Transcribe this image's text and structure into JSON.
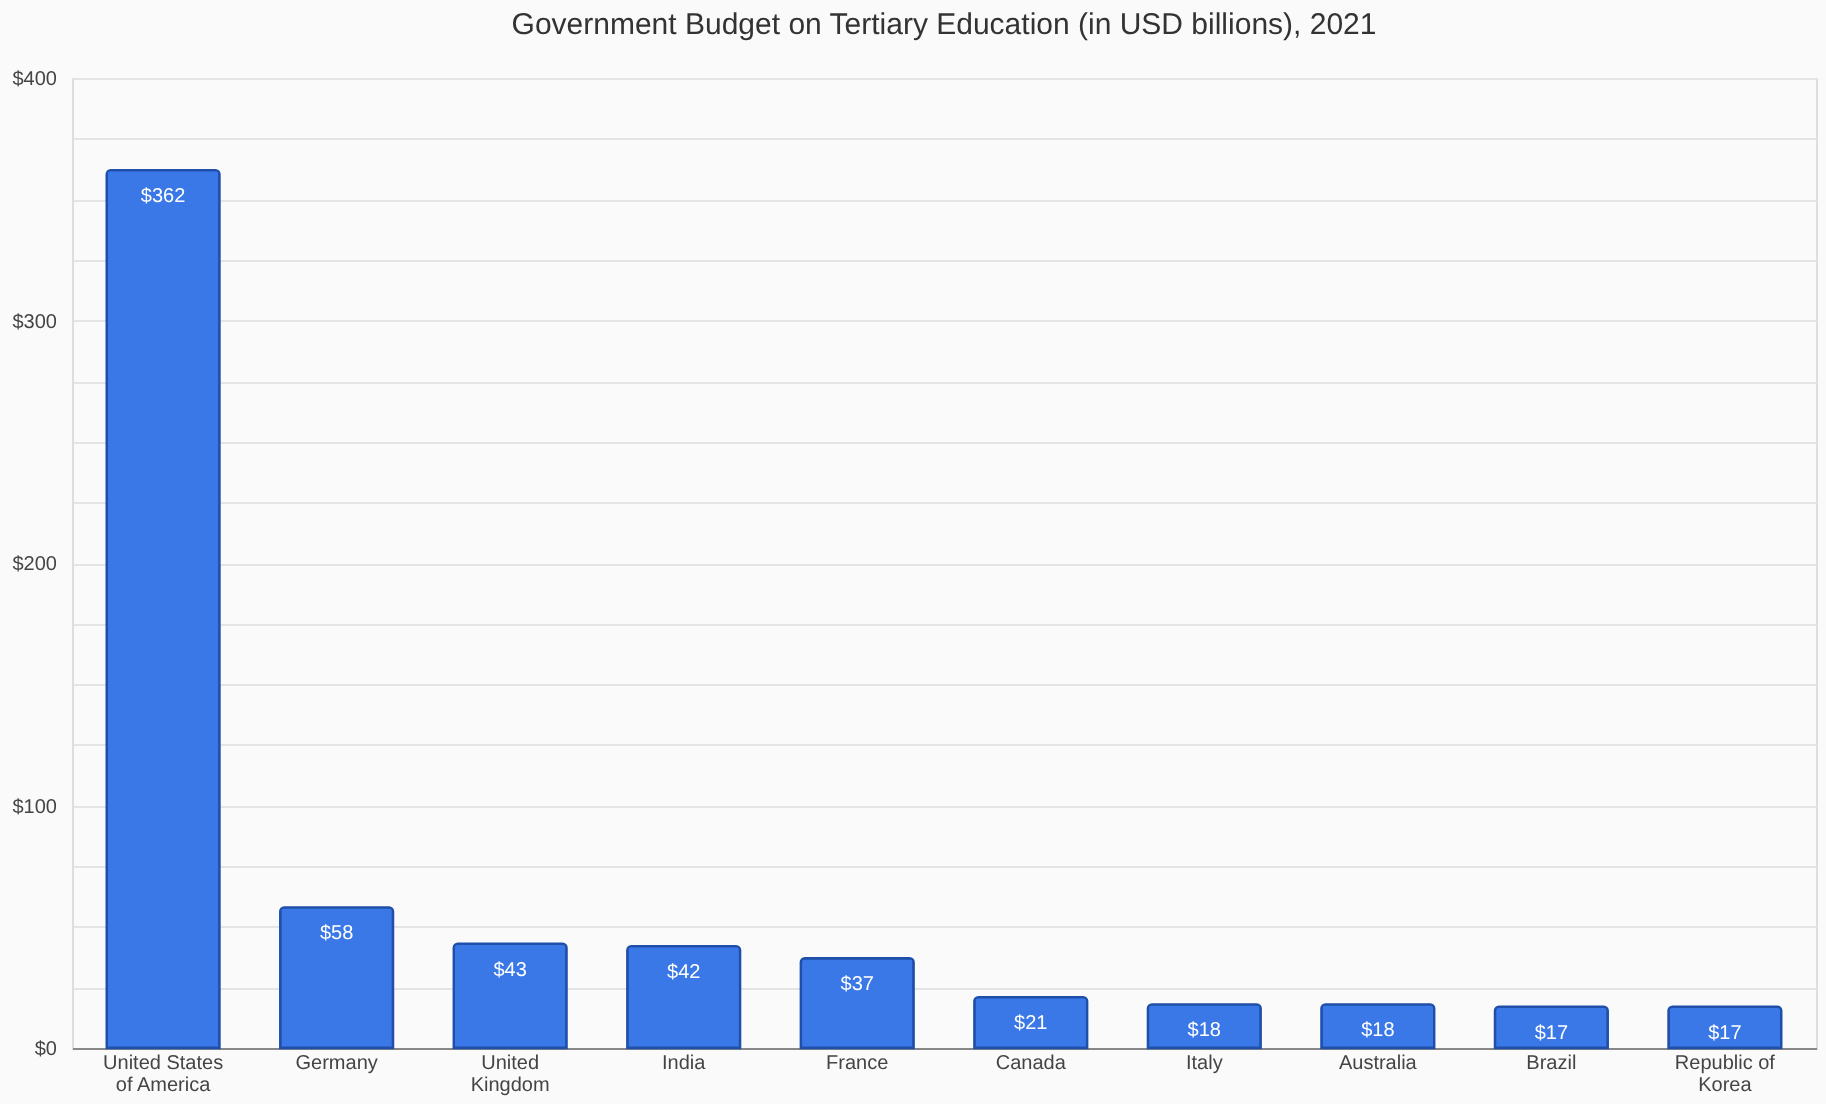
{
  "chart_data": {
    "type": "bar",
    "title": "Government Budget on Tertiary Education (in USD billions), 2021",
    "categories": [
      "United States\nof America",
      "Germany",
      "United\nKingdom",
      "India",
      "France",
      "Canada",
      "Italy",
      "Australia",
      "Brazil",
      "Republic of\nKorea"
    ],
    "values": [
      362,
      58,
      43,
      42,
      37,
      21,
      18,
      18,
      17,
      17
    ],
    "value_labels": [
      "$362",
      "$58",
      "$43",
      "$42",
      "$37",
      "$21",
      "$18",
      "$18",
      "$17",
      "$17"
    ],
    "color": "#3b78e7",
    "ylim": [
      0,
      400
    ],
    "yticks": [
      {
        "value": 0,
        "label": "$0"
      },
      {
        "value": 25,
        "label": null
      },
      {
        "value": 50,
        "label": null
      },
      {
        "value": 75,
        "label": null
      },
      {
        "value": 100,
        "label": "$100"
      },
      {
        "value": 125,
        "label": null
      },
      {
        "value": 150,
        "label": null
      },
      {
        "value": 175,
        "label": null
      },
      {
        "value": 200,
        "label": "$200"
      },
      {
        "value": 225,
        "label": null
      },
      {
        "value": 250,
        "label": null
      },
      {
        "value": 275,
        "label": null
      },
      {
        "value": 300,
        "label": "$300"
      },
      {
        "value": 325,
        "label": null
      },
      {
        "value": 350,
        "label": null
      },
      {
        "value": 375,
        "label": null
      },
      {
        "value": 400,
        "label": "$400"
      }
    ],
    "grid": "y"
  }
}
